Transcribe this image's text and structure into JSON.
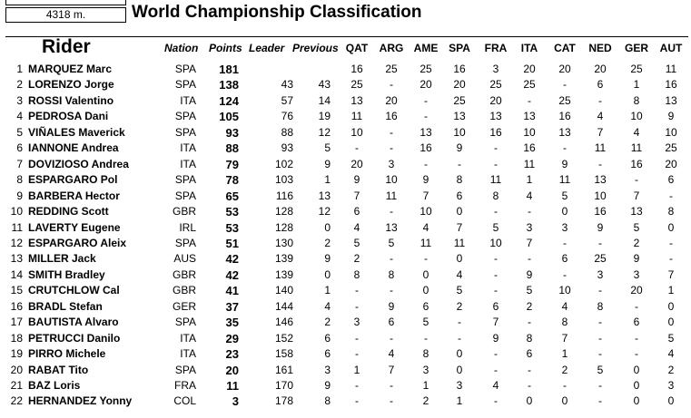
{
  "distance": "4318 m.",
  "title": "World Championship Classification",
  "headers": {
    "rider": "Rider",
    "nation": "Nation",
    "points": "Points",
    "leader": "Leader",
    "previous": "Previous",
    "races": [
      "QAT",
      "ARG",
      "AME",
      "SPA",
      "FRA",
      "ITA",
      "CAT",
      "NED",
      "GER",
      "AUT"
    ]
  },
  "rows": [
    {
      "pos": "1",
      "name": "MARQUEZ Marc",
      "nation": "SPA",
      "points": "181",
      "leader": "",
      "previous": "",
      "races": [
        "16",
        "25",
        "25",
        "16",
        "3",
        "20",
        "20",
        "20",
        "25",
        "11"
      ]
    },
    {
      "pos": "2",
      "name": "LORENZO Jorge",
      "nation": "SPA",
      "points": "138",
      "leader": "43",
      "previous": "43",
      "races": [
        "25",
        "-",
        "20",
        "20",
        "25",
        "25",
        "-",
        "6",
        "1",
        "16"
      ]
    },
    {
      "pos": "3",
      "name": "ROSSI Valentino",
      "nation": "ITA",
      "points": "124",
      "leader": "57",
      "previous": "14",
      "races": [
        "13",
        "20",
        "-",
        "25",
        "20",
        "-",
        "25",
        "-",
        "8",
        "13"
      ]
    },
    {
      "pos": "4",
      "name": "PEDROSA Dani",
      "nation": "SPA",
      "points": "105",
      "leader": "76",
      "previous": "19",
      "races": [
        "11",
        "16",
        "-",
        "13",
        "13",
        "13",
        "16",
        "4",
        "10",
        "9"
      ]
    },
    {
      "pos": "5",
      "name": "VIÑALES Maverick",
      "nation": "SPA",
      "points": "93",
      "leader": "88",
      "previous": "12",
      "races": [
        "10",
        "-",
        "13",
        "10",
        "16",
        "10",
        "13",
        "7",
        "4",
        "10"
      ]
    },
    {
      "pos": "6",
      "name": "IANNONE Andrea",
      "nation": "ITA",
      "points": "88",
      "leader": "93",
      "previous": "5",
      "races": [
        "-",
        "-",
        "16",
        "9",
        "-",
        "16",
        "-",
        "11",
        "11",
        "25"
      ]
    },
    {
      "pos": "7",
      "name": "DOVIZIOSO Andrea",
      "nation": "ITA",
      "points": "79",
      "leader": "102",
      "previous": "9",
      "races": [
        "20",
        "3",
        "-",
        "-",
        "-",
        "11",
        "9",
        "-",
        "16",
        "20"
      ]
    },
    {
      "pos": "8",
      "name": "ESPARGARO Pol",
      "nation": "SPA",
      "points": "78",
      "leader": "103",
      "previous": "1",
      "races": [
        "9",
        "10",
        "9",
        "8",
        "11",
        "1",
        "11",
        "13",
        "-",
        "6"
      ]
    },
    {
      "pos": "9",
      "name": "BARBERA Hector",
      "nation": "SPA",
      "points": "65",
      "leader": "116",
      "previous": "13",
      "races": [
        "7",
        "11",
        "7",
        "6",
        "8",
        "4",
        "5",
        "10",
        "7",
        "-"
      ]
    },
    {
      "pos": "10",
      "name": "REDDING Scott",
      "nation": "GBR",
      "points": "53",
      "leader": "128",
      "previous": "12",
      "races": [
        "6",
        "-",
        "10",
        "0",
        "-",
        "-",
        "0",
        "16",
        "13",
        "8"
      ]
    },
    {
      "pos": "11",
      "name": "LAVERTY Eugene",
      "nation": "IRL",
      "points": "53",
      "leader": "128",
      "previous": "0",
      "races": [
        "4",
        "13",
        "4",
        "7",
        "5",
        "3",
        "3",
        "9",
        "5",
        "0"
      ]
    },
    {
      "pos": "12",
      "name": "ESPARGARO Aleix",
      "nation": "SPA",
      "points": "51",
      "leader": "130",
      "previous": "2",
      "races": [
        "5",
        "5",
        "11",
        "11",
        "10",
        "7",
        "-",
        "-",
        "2",
        "-"
      ]
    },
    {
      "pos": "13",
      "name": "MILLER Jack",
      "nation": "AUS",
      "points": "42",
      "leader": "139",
      "previous": "9",
      "races": [
        "2",
        "-",
        "-",
        "0",
        "-",
        "-",
        "6",
        "25",
        "9",
        "-"
      ]
    },
    {
      "pos": "14",
      "name": "SMITH Bradley",
      "nation": "GBR",
      "points": "42",
      "leader": "139",
      "previous": "0",
      "races": [
        "8",
        "8",
        "0",
        "4",
        "-",
        "9",
        "-",
        "3",
        "3",
        "7"
      ]
    },
    {
      "pos": "15",
      "name": "CRUTCHLOW Cal",
      "nation": "GBR",
      "points": "41",
      "leader": "140",
      "previous": "1",
      "races": [
        "-",
        "-",
        "0",
        "5",
        "-",
        "5",
        "10",
        "-",
        "20",
        "1"
      ]
    },
    {
      "pos": "16",
      "name": "BRADL Stefan",
      "nation": "GER",
      "points": "37",
      "leader": "144",
      "previous": "4",
      "races": [
        "-",
        "9",
        "6",
        "2",
        "6",
        "2",
        "4",
        "8",
        "-",
        "0"
      ]
    },
    {
      "pos": "17",
      "name": "BAUTISTA Alvaro",
      "nation": "SPA",
      "points": "35",
      "leader": "146",
      "previous": "2",
      "races": [
        "3",
        "6",
        "5",
        "-",
        "7",
        "-",
        "8",
        "-",
        "6",
        "0"
      ]
    },
    {
      "pos": "18",
      "name": "PETRUCCI Danilo",
      "nation": "ITA",
      "points": "29",
      "leader": "152",
      "previous": "6",
      "races": [
        "-",
        "-",
        "-",
        "-",
        "9",
        "8",
        "7",
        "-",
        "-",
        "5"
      ]
    },
    {
      "pos": "19",
      "name": "PIRRO Michele",
      "nation": "ITA",
      "points": "23",
      "leader": "158",
      "previous": "6",
      "races": [
        "-",
        "4",
        "8",
        "0",
        "-",
        "6",
        "1",
        "-",
        "-",
        "4"
      ]
    },
    {
      "pos": "20",
      "name": "RABAT Tito",
      "nation": "SPA",
      "points": "20",
      "leader": "161",
      "previous": "3",
      "races": [
        "1",
        "7",
        "3",
        "0",
        "-",
        "-",
        "2",
        "5",
        "0",
        "2"
      ]
    },
    {
      "pos": "21",
      "name": "BAZ Loris",
      "nation": "FRA",
      "points": "11",
      "leader": "170",
      "previous": "9",
      "races": [
        "-",
        "-",
        "1",
        "3",
        "4",
        "-",
        "-",
        "-",
        "0",
        "3"
      ]
    },
    {
      "pos": "22",
      "name": "HERNANDEZ Yonny",
      "nation": "COL",
      "points": "3",
      "leader": "178",
      "previous": "8",
      "races": [
        "-",
        "-",
        "2",
        "1",
        "-",
        "0",
        "0",
        "-",
        "0",
        "0"
      ]
    }
  ]
}
